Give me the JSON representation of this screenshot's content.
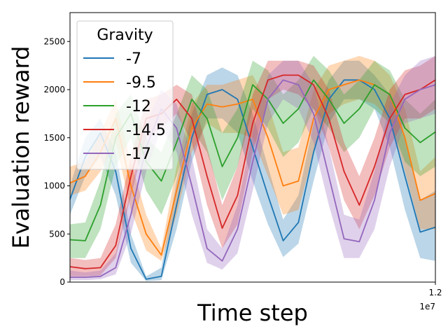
{
  "chart_data": {
    "type": "line",
    "title": "",
    "xlabel": "Time step",
    "ylabel": "Evaluation reward",
    "x_offset_label": "1e7",
    "xlim": [
      0,
      12000000
    ],
    "ylim": [
      0,
      2800
    ],
    "x_ticks": [
      {
        "value": 12000000,
        "label": "1.2"
      }
    ],
    "y_ticks": [
      {
        "value": 0,
        "label": "0"
      },
      {
        "value": 500,
        "label": "500"
      },
      {
        "value": 1000,
        "label": "1000"
      },
      {
        "value": 1500,
        "label": "1500"
      },
      {
        "value": 2000,
        "label": "2000"
      },
      {
        "value": 2500,
        "label": "2500"
      }
    ],
    "grid": false,
    "legend": {
      "title": "Gravity",
      "position": "top-left"
    },
    "x": [
      0,
      500000,
      1000000,
      1500000,
      2000000,
      2500000,
      3000000,
      3500000,
      4000000,
      4500000,
      5000000,
      5500000,
      6000000,
      6500000,
      7000000,
      7500000,
      8000000,
      8500000,
      9000000,
      9500000,
      10000000,
      10500000,
      11000000,
      11500000,
      12000000
    ],
    "series": [
      {
        "name": "-7",
        "color": "#1f77b4",
        "values": [
          860,
          1300,
          1550,
          1150,
          350,
          30,
          60,
          800,
          1500,
          1950,
          2000,
          1900,
          1400,
          900,
          430,
          620,
          1350,
          1900,
          2100,
          2100,
          2000,
          1700,
          1100,
          520,
          570
        ],
        "lower": [
          700,
          1100,
          1300,
          900,
          200,
          10,
          20,
          550,
          1250,
          1700,
          1700,
          1550,
          1050,
          600,
          260,
          400,
          1050,
          1650,
          1900,
          1900,
          1800,
          1400,
          750,
          250,
          220
        ],
        "upper": [
          1000,
          1500,
          1700,
          1350,
          500,
          60,
          150,
          1050,
          1750,
          2150,
          2230,
          2150,
          1750,
          1200,
          650,
          900,
          1650,
          2100,
          2300,
          2300,
          2150,
          1950,
          1500,
          850,
          950
        ]
      },
      {
        "name": "-9.5",
        "color": "#ff7f0e",
        "values": [
          1030,
          1100,
          1350,
          1700,
          1000,
          500,
          280,
          950,
          1600,
          1850,
          1820,
          1850,
          1900,
          1500,
          1000,
          1050,
          1700,
          2000,
          2050,
          2100,
          2050,
          1950,
          1500,
          850,
          920
        ],
        "lower": [
          900,
          950,
          1150,
          1450,
          750,
          330,
          220,
          700,
          1350,
          1650,
          1550,
          1550,
          1500,
          1100,
          700,
          750,
          1350,
          1750,
          1850,
          1900,
          1850,
          1700,
          1150,
          550,
          550
        ],
        "upper": [
          1200,
          1250,
          1550,
          1900,
          1250,
          700,
          350,
          1200,
          1850,
          2050,
          2050,
          2100,
          2150,
          1850,
          1350,
          1400,
          2000,
          2250,
          2300,
          2350,
          2300,
          2150,
          1800,
          1150,
          1300
        ]
      },
      {
        "name": "-12",
        "color": "#2ca02c",
        "values": [
          440,
          430,
          800,
          1500,
          1750,
          1250,
          1050,
          1450,
          1900,
          1700,
          1200,
          1500,
          2050,
          1900,
          1650,
          1800,
          2100,
          1900,
          1650,
          1800,
          2050,
          1950,
          1600,
          1450,
          1560
        ],
        "lower": [
          250,
          250,
          550,
          1200,
          1500,
          950,
          700,
          1100,
          1600,
          1350,
          850,
          1200,
          1800,
          1600,
          1300,
          1450,
          1800,
          1600,
          1350,
          1500,
          1800,
          1650,
          1250,
          1100,
          1200
        ],
        "upper": [
          600,
          620,
          1050,
          1750,
          1950,
          1500,
          1350,
          1750,
          2150,
          2000,
          1550,
          1800,
          2300,
          2200,
          1950,
          2100,
          2350,
          2200,
          1950,
          2100,
          2300,
          2200,
          1900,
          1750,
          1900
        ]
      },
      {
        "name": "-14.5",
        "color": "#d62728",
        "values": [
          160,
          140,
          150,
          380,
          1100,
          1700,
          1750,
          1900,
          1700,
          1100,
          560,
          900,
          1650,
          2100,
          2150,
          2150,
          2050,
          1700,
          1150,
          800,
          1200,
          1700,
          1950,
          2000,
          2100
        ],
        "lower": [
          60,
          60,
          70,
          250,
          900,
          1500,
          1600,
          1750,
          1450,
          800,
          350,
          600,
          1350,
          1900,
          2000,
          1950,
          1800,
          1400,
          850,
          550,
          900,
          1400,
          1700,
          1700,
          1800
        ],
        "upper": [
          250,
          230,
          250,
          600,
          1300,
          1900,
          1950,
          2050,
          1950,
          1400,
          800,
          1200,
          1950,
          2300,
          2300,
          2300,
          2250,
          2000,
          1450,
          1100,
          1500,
          2000,
          2200,
          2250,
          2350
        ]
      },
      {
        "name": "-17",
        "color": "#9467bd",
        "values": [
          50,
          50,
          60,
          150,
          700,
          1400,
          1800,
          1600,
          1000,
          350,
          220,
          550,
          1250,
          1900,
          2100,
          2050,
          1750,
          1100,
          450,
          420,
          850,
          1550,
          1900,
          2000,
          2050
        ],
        "lower": [
          20,
          20,
          30,
          80,
          500,
          1150,
          1600,
          1350,
          700,
          200,
          130,
          300,
          950,
          1650,
          1900,
          1800,
          1450,
          800,
          250,
          250,
          550,
          1200,
          1650,
          1700,
          1750
        ],
        "upper": [
          120,
          100,
          120,
          300,
          950,
          1650,
          2000,
          1850,
          1300,
          550,
          350,
          800,
          1550,
          2150,
          2300,
          2300,
          2050,
          1400,
          700,
          650,
          1150,
          1850,
          2150,
          2300,
          2350
        ]
      }
    ]
  }
}
